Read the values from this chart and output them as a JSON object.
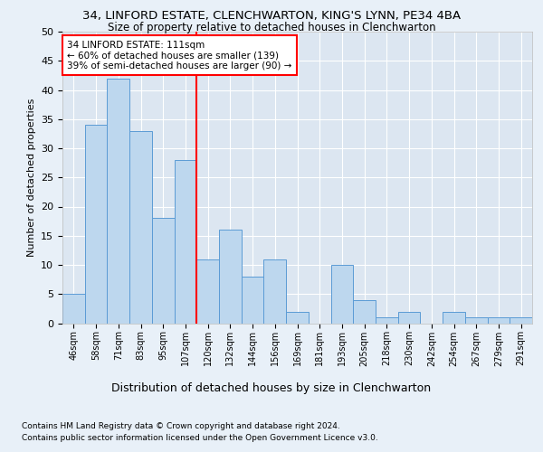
{
  "title1": "34, LINFORD ESTATE, CLENCHWARTON, KING'S LYNN, PE34 4BA",
  "title2": "Size of property relative to detached houses in Clenchwarton",
  "xlabel": "Distribution of detached houses by size in Clenchwarton",
  "ylabel": "Number of detached properties",
  "footnote1": "Contains HM Land Registry data © Crown copyright and database right 2024.",
  "footnote2": "Contains public sector information licensed under the Open Government Licence v3.0.",
  "categories": [
    "46sqm",
    "58sqm",
    "71sqm",
    "83sqm",
    "95sqm",
    "107sqm",
    "120sqm",
    "132sqm",
    "144sqm",
    "156sqm",
    "169sqm",
    "181sqm",
    "193sqm",
    "205sqm",
    "218sqm",
    "230sqm",
    "242sqm",
    "254sqm",
    "267sqm",
    "279sqm",
    "291sqm"
  ],
  "values": [
    5,
    34,
    42,
    33,
    18,
    28,
    11,
    16,
    8,
    11,
    2,
    0,
    10,
    4,
    1,
    2,
    0,
    2,
    1,
    1,
    1
  ],
  "bar_color": "#bdd7ee",
  "bar_edge_color": "#5b9bd5",
  "vline_x": 5.5,
  "vline_color": "red",
  "annotation_text": "34 LINFORD ESTATE: 111sqm\n← 60% of detached houses are smaller (139)\n39% of semi-detached houses are larger (90) →",
  "annotation_box_color": "white",
  "annotation_box_edge_color": "red",
  "ylim": [
    0,
    50
  ],
  "yticks": [
    0,
    5,
    10,
    15,
    20,
    25,
    30,
    35,
    40,
    45,
    50
  ],
  "background_color": "#e8f0f8",
  "axes_background": "#dce6f1"
}
